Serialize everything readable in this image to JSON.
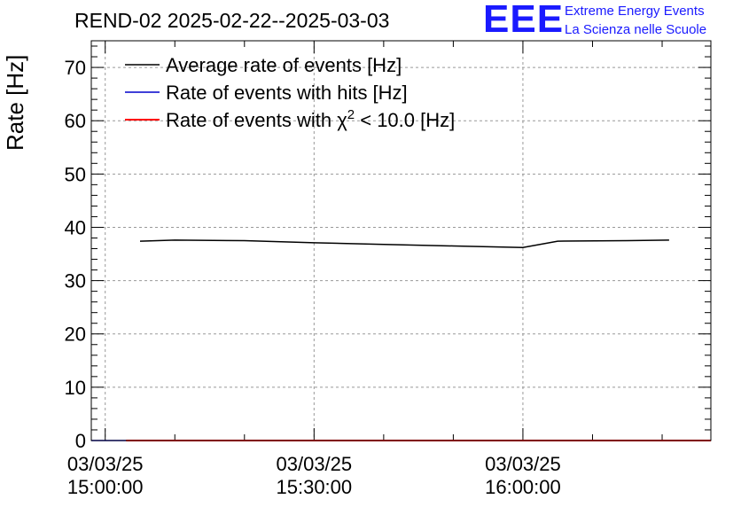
{
  "header": {
    "title": "REND-02 2025-02-22--2025-03-03",
    "logo_text": "EEE",
    "logo_line1": "Extreme Energy Events",
    "logo_line2": "La Scienza nelle Scuole"
  },
  "colors": {
    "average": "#000000",
    "hits": "#0000cc",
    "chi2": "#ff0000",
    "logo": "#1a1aff",
    "grid": "#999999"
  },
  "chart_data": {
    "type": "line",
    "title": "REND-02 2025-02-22--2025-03-03",
    "ylabel": "Rate [Hz]",
    "xlabel": "",
    "ylim": [
      0,
      75
    ],
    "yticks": [
      0,
      10,
      20,
      30,
      40,
      50,
      60,
      70
    ],
    "xlim": [
      "03/03/25 14:58:00",
      "03/03/25 16:27:00"
    ],
    "xticks": [
      {
        "date": "03/03/25",
        "time": "15:00:00"
      },
      {
        "date": "03/03/25",
        "time": "15:30:00"
      },
      {
        "date": "03/03/25",
        "time": "16:00:00"
      }
    ],
    "grid": true,
    "legend_position": "top-left",
    "series": [
      {
        "name": "Average rate of events [Hz]",
        "x": [
          "15:05:00",
          "15:10:00",
          "15:20:00",
          "15:30:00",
          "15:40:00",
          "15:50:00",
          "16:00:00",
          "16:05:00",
          "16:15:00",
          "16:21:00"
        ],
        "values": [
          37.4,
          37.6,
          37.5,
          37.1,
          36.8,
          36.5,
          36.2,
          37.4,
          37.5,
          37.6
        ]
      },
      {
        "name": "Rate of events with hits [Hz]",
        "x": [
          "14:58:00",
          "16:27:00"
        ],
        "values": [
          0,
          0
        ]
      },
      {
        "name": "Rate of events with χ² < 10.0 [Hz]",
        "name_prefix": "Rate of events with ",
        "name_symbol": "χ",
        "name_sup": "2",
        "name_suffix": " < 10.0 [Hz]",
        "x": [
          "15:03:00",
          "16:27:00"
        ],
        "values": [
          0,
          0
        ]
      }
    ]
  }
}
